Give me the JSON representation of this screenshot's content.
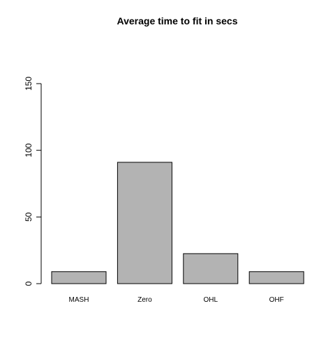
{
  "chart_data": {
    "type": "bar",
    "title": "Average time to fit in secs",
    "xlabel": "",
    "ylabel": "",
    "categories": [
      "MASH",
      "Zero",
      "OHL",
      "OHF"
    ],
    "values": [
      9,
      91,
      22.5,
      9
    ],
    "ylim": [
      0,
      150
    ],
    "yticks": [
      0,
      50,
      100,
      150
    ],
    "bar_fill": "#b3b3b3",
    "bar_stroke": "#000000",
    "grid": false
  }
}
